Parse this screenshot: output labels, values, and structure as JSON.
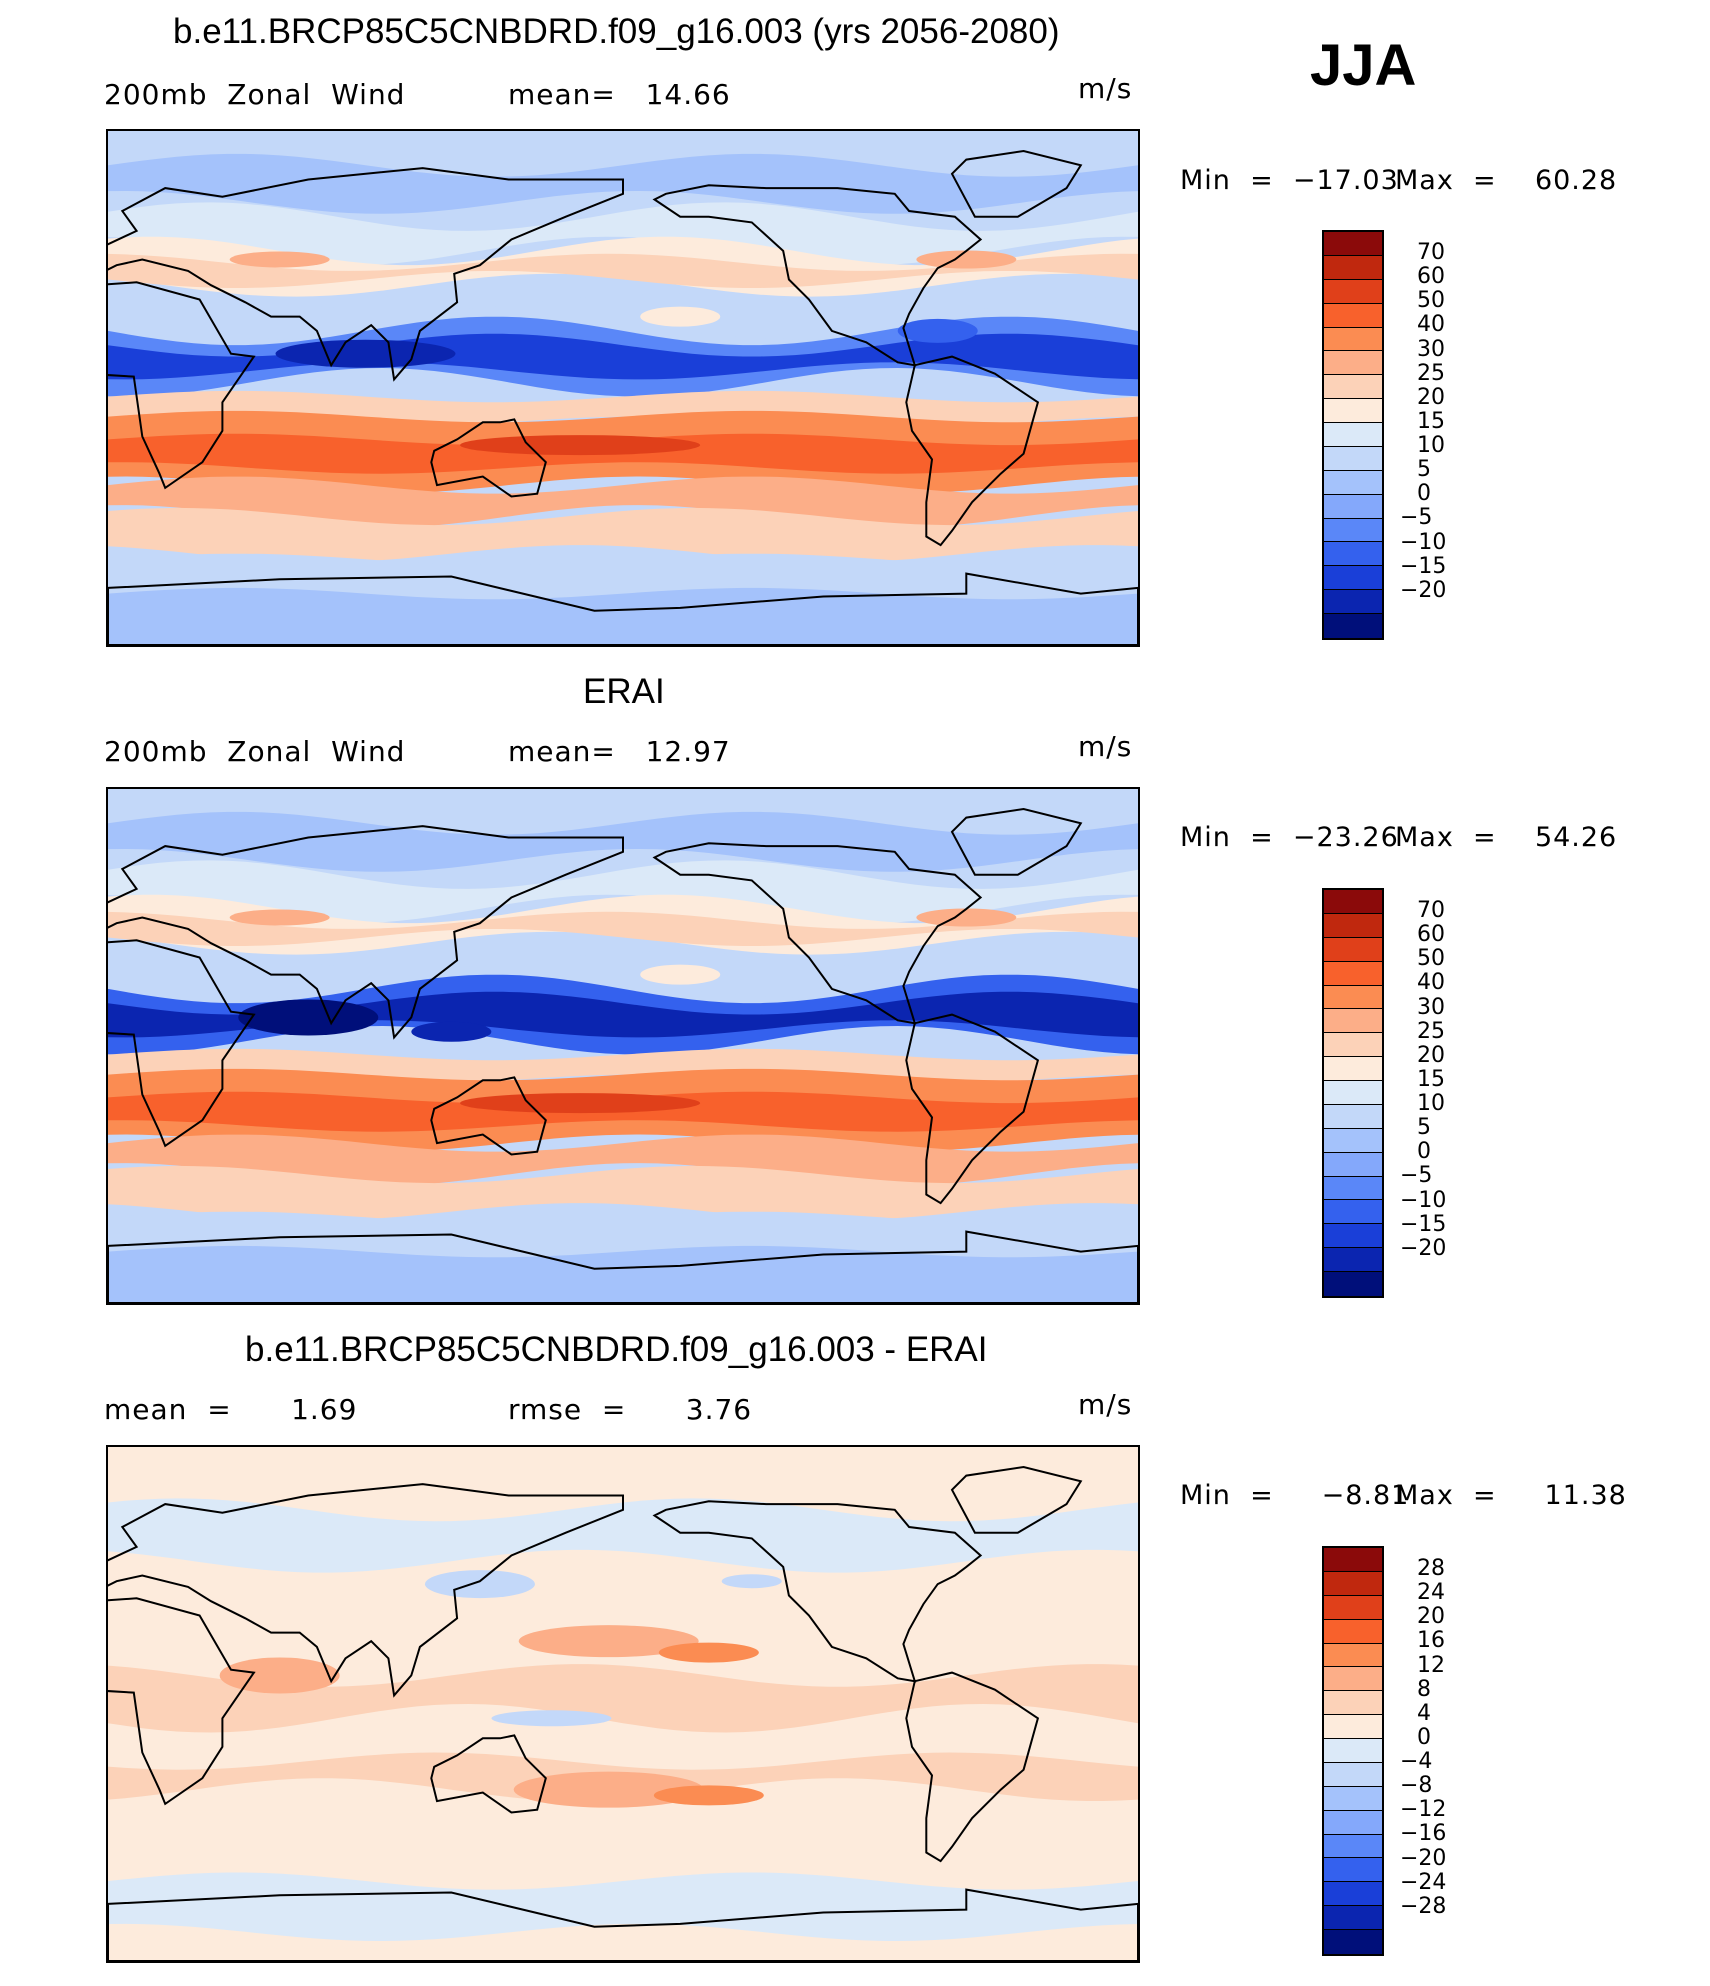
{
  "season": "JJA",
  "panels": [
    {
      "title": "b.e11.BRCP85C5CNBDRD.f09_g16.003 (yrs 2056-2080)",
      "left_label": "200mb  Zonal  Wind",
      "mid_label": "mean=   14.66",
      "units": "m/s",
      "min_label": "Min  =  −17.03",
      "max_label": "Max  =    60.28",
      "field": "model",
      "colorbar": {
        "levels": [
          "70",
          "60",
          "50",
          "40",
          "30",
          "25",
          "20",
          "15",
          "10",
          "5",
          "0",
          "−5",
          "−10",
          "−15",
          "−20"
        ],
        "colors": [
          "#8b0a0a",
          "#c0280e",
          "#e0401a",
          "#f8612c",
          "#fb8c52",
          "#fcae88",
          "#fcd2b8",
          "#fdebdc",
          "#dbe9f8",
          "#c3d8f9",
          "#a4c2fb",
          "#84a8fb",
          "#5a87f8",
          "#3461ee",
          "#1a3fd8",
          "#0b25b0",
          "#000f7a"
        ]
      }
    },
    {
      "title": "ERAI",
      "left_label": "200mb  Zonal  Wind",
      "mid_label": "mean=   12.97",
      "units": "m/s",
      "min_label": "Min  =  −23.26",
      "max_label": "Max  =    54.26",
      "field": "obs",
      "colorbar": {
        "levels": [
          "70",
          "60",
          "50",
          "40",
          "30",
          "25",
          "20",
          "15",
          "10",
          "5",
          "0",
          "−5",
          "−10",
          "−15",
          "−20"
        ],
        "colors": [
          "#8b0a0a",
          "#c0280e",
          "#e0401a",
          "#f8612c",
          "#fb8c52",
          "#fcae88",
          "#fcd2b8",
          "#fdebdc",
          "#dbe9f8",
          "#c3d8f9",
          "#a4c2fb",
          "#84a8fb",
          "#5a87f8",
          "#3461ee",
          "#1a3fd8",
          "#0b25b0",
          "#000f7a"
        ]
      }
    },
    {
      "title": "b.e11.BRCP85C5CNBDRD.f09_g16.003 - ERAI",
      "left_label": "mean  =      1.69",
      "mid_label": "rmse  =      3.76",
      "units": "m/s",
      "min_label": "Min  =     −8.81",
      "max_label": "Max  =     11.38",
      "field": "diff",
      "colorbar": {
        "levels": [
          "28",
          "24",
          "20",
          "16",
          "12",
          "8",
          "4",
          "0",
          "−4",
          "−8",
          "−12",
          "−16",
          "−20",
          "−24",
          "−28"
        ],
        "colors": [
          "#8b0a0a",
          "#c0280e",
          "#e0401a",
          "#f8612c",
          "#fb8c52",
          "#fcae88",
          "#fcd2b8",
          "#fdebdc",
          "#dbe9f8",
          "#c3d8f9",
          "#a4c2fb",
          "#84a8fb",
          "#5a87f8",
          "#3461ee",
          "#1a3fd8",
          "#0b25b0",
          "#000f7a"
        ]
      }
    }
  ]
}
